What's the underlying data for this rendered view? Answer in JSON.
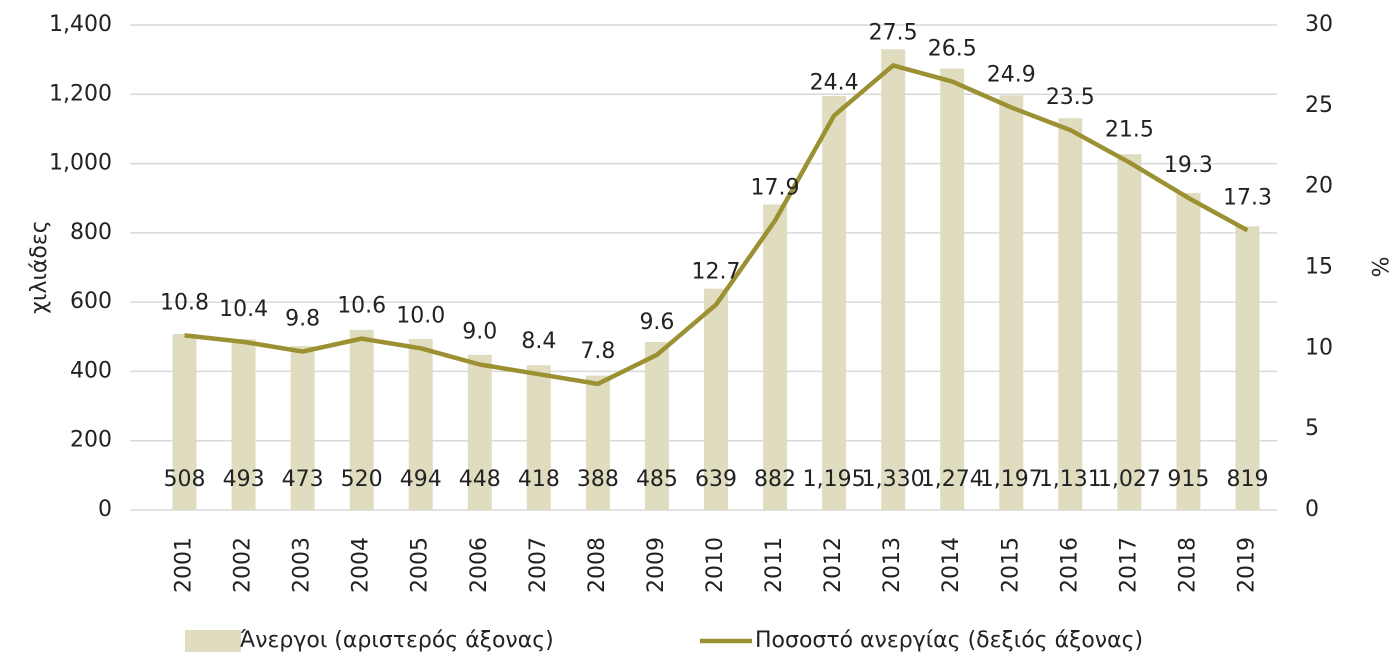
{
  "chart_data": {
    "type": "bar_line",
    "categories": [
      "2001",
      "2002",
      "2003",
      "2004",
      "2005",
      "2006",
      "2007",
      "2008",
      "2009",
      "2010",
      "2011",
      "2012",
      "2013",
      "2014",
      "2015",
      "2016",
      "2017",
      "2018",
      "2019"
    ],
    "series": [
      {
        "name": "Άνεργοι (αριστερός άξονας)",
        "type": "bar",
        "color": "#e0dcbf",
        "values": [
          508,
          493,
          473,
          520,
          494,
          448,
          418,
          388,
          485,
          639,
          882,
          1195,
          1330,
          1274,
          1197,
          1131,
          1027,
          915,
          819
        ],
        "value_labels": [
          "508",
          "493",
          "473",
          "520",
          "494",
          "448",
          "418",
          "388",
          "485",
          "639",
          "882",
          "1,195",
          "1,330",
          "1,274",
          "1,197",
          "1,131",
          "1,027",
          "915",
          "819"
        ]
      },
      {
        "name": "Ποσοστό ανεργίας (δεξιός άξονας)",
        "type": "line",
        "axis": "y2",
        "color": "#9c9132",
        "values": [
          10.8,
          10.4,
          9.8,
          10.6,
          10.0,
          9.0,
          8.4,
          7.8,
          9.6,
          12.7,
          17.9,
          24.4,
          27.5,
          26.5,
          24.9,
          23.5,
          21.5,
          19.3,
          17.3
        ],
        "value_labels": [
          "10.8",
          "10.4",
          "9.8",
          "10.6",
          "10.0",
          "9.0",
          "8.4",
          "7.8",
          "9.6",
          "12.7",
          "17.9",
          "24.4",
          "27.5",
          "26.5",
          "24.9",
          "23.5",
          "21.5",
          "19.3",
          "17.3"
        ]
      }
    ],
    "y_label": "χιλιάδες",
    "y2_label": "%",
    "ylim": [
      0,
      1400
    ],
    "yticks": [
      0,
      200,
      400,
      600,
      800,
      {
        "value": 1000,
        "label": "1,000"
      },
      {
        "value": 1200,
        "label": "1,200"
      },
      {
        "value": 1400,
        "label": "1,400"
      }
    ],
    "y2lim": [
      0,
      30
    ],
    "y2ticks": [
      0,
      5,
      10,
      15,
      20,
      25,
      30
    ],
    "grid": true,
    "legend": "bottom"
  }
}
